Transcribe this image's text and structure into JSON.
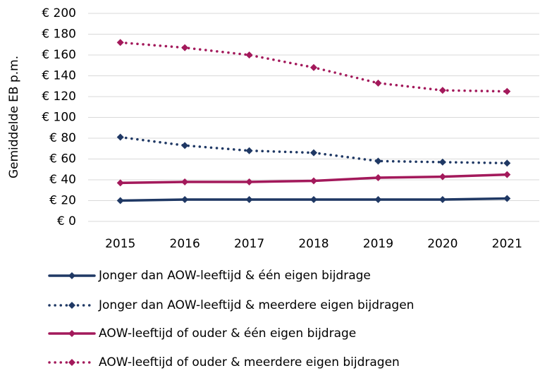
{
  "chart_data": {
    "type": "line",
    "y_label": "Gemiddelde EB p.m.",
    "categories": [
      "2015",
      "2016",
      "2017",
      "2018",
      "2019",
      "2020",
      "2021"
    ],
    "series": [
      {
        "name": "Jonger dan AOW-leeftijd & één eigen bijdrage",
        "color": "#1f3864",
        "line_style": "solid",
        "values": [
          20,
          21,
          21,
          21,
          21,
          21,
          22
        ]
      },
      {
        "name": "Jonger dan AOW-leeftijd & meerdere eigen bijdragen",
        "color": "#1f3864",
        "line_style": "dotted",
        "values": [
          81,
          73,
          68,
          66,
          58,
          57,
          56
        ]
      },
      {
        "name": "AOW-leeftijd of ouder & één eigen bijdrage",
        "color": "#a3195b",
        "line_style": "solid",
        "values": [
          37,
          38,
          38,
          39,
          42,
          43,
          45
        ]
      },
      {
        "name": "AOW-leeftijd of ouder & meerdere eigen bijdragen",
        "color": "#a3195b",
        "line_style": "dotted",
        "values": [
          172,
          167,
          160,
          148,
          133,
          126,
          125
        ]
      }
    ],
    "ylim": [
      0,
      200
    ],
    "yticks": [
      {
        "value": 0,
        "label": "€ 0"
      },
      {
        "value": 20,
        "label": "€ 20"
      },
      {
        "value": 40,
        "label": "€ 40"
      },
      {
        "value": 60,
        "label": "€ 60"
      },
      {
        "value": 80,
        "label": "€ 80"
      },
      {
        "value": 100,
        "label": "€ 100"
      },
      {
        "value": 120,
        "label": "€ 120"
      },
      {
        "value": 140,
        "label": "€ 140"
      },
      {
        "value": 160,
        "label": "€ 160"
      },
      {
        "value": 180,
        "label": "€ 180"
      },
      {
        "value": 200,
        "label": "€ 200"
      }
    ],
    "grid": true,
    "legend": "bottom"
  }
}
